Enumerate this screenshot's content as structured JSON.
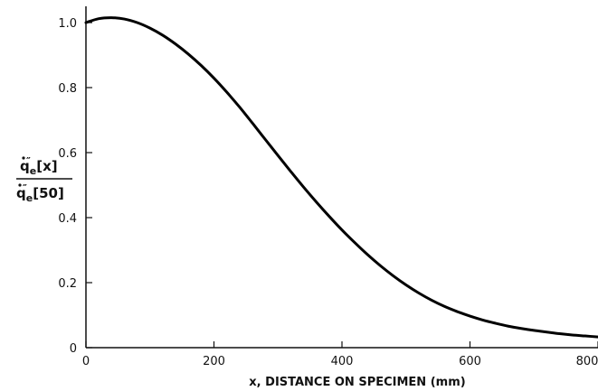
{
  "chart_data": {
    "type": "line",
    "title": "",
    "xlabel": "x, DISTANCE ON SPECIMEN (mm)",
    "ylabel": {
      "numerator": {
        "base": "q",
        "sub": "e",
        "sup": "″",
        "arg": "[x]"
      },
      "denominator": {
        "base": "q",
        "sub": "e",
        "sup": "″",
        "arg": "[50]"
      }
    },
    "xlim": [
      0,
      800
    ],
    "ylim": [
      0,
      1.05
    ],
    "xticks": [
      0,
      200,
      400,
      600,
      800
    ],
    "xtick_labels": [
      "0",
      "200",
      "400",
      "600",
      "800"
    ],
    "yticks": [
      0,
      0.2,
      0.4,
      0.6,
      0.8,
      1.0
    ],
    "ytick_labels": [
      "0",
      "0.2",
      "0.4",
      "0.6",
      "0.8",
      "1.0"
    ],
    "grid": false,
    "series": [
      {
        "color": "#000000",
        "x": [
          0,
          20,
          40,
          60,
          80,
          100,
          120,
          140,
          160,
          180,
          200,
          220,
          240,
          260,
          280,
          300,
          320,
          340,
          360,
          380,
          400,
          420,
          440,
          460,
          480,
          500,
          520,
          540,
          560,
          580,
          600,
          620,
          640,
          660,
          680,
          700,
          720,
          740,
          760,
          780,
          800
        ],
        "y": [
          1.0,
          1.012,
          1.015,
          1.011,
          1.0,
          0.983,
          0.961,
          0.934,
          0.903,
          0.868,
          0.829,
          0.786,
          0.74,
          0.691,
          0.641,
          0.591,
          0.542,
          0.494,
          0.448,
          0.404,
          0.362,
          0.323,
          0.286,
          0.252,
          0.221,
          0.193,
          0.168,
          0.146,
          0.127,
          0.111,
          0.097,
          0.085,
          0.075,
          0.066,
          0.059,
          0.053,
          0.048,
          0.043,
          0.039,
          0.036,
          0.033
        ]
      }
    ]
  }
}
